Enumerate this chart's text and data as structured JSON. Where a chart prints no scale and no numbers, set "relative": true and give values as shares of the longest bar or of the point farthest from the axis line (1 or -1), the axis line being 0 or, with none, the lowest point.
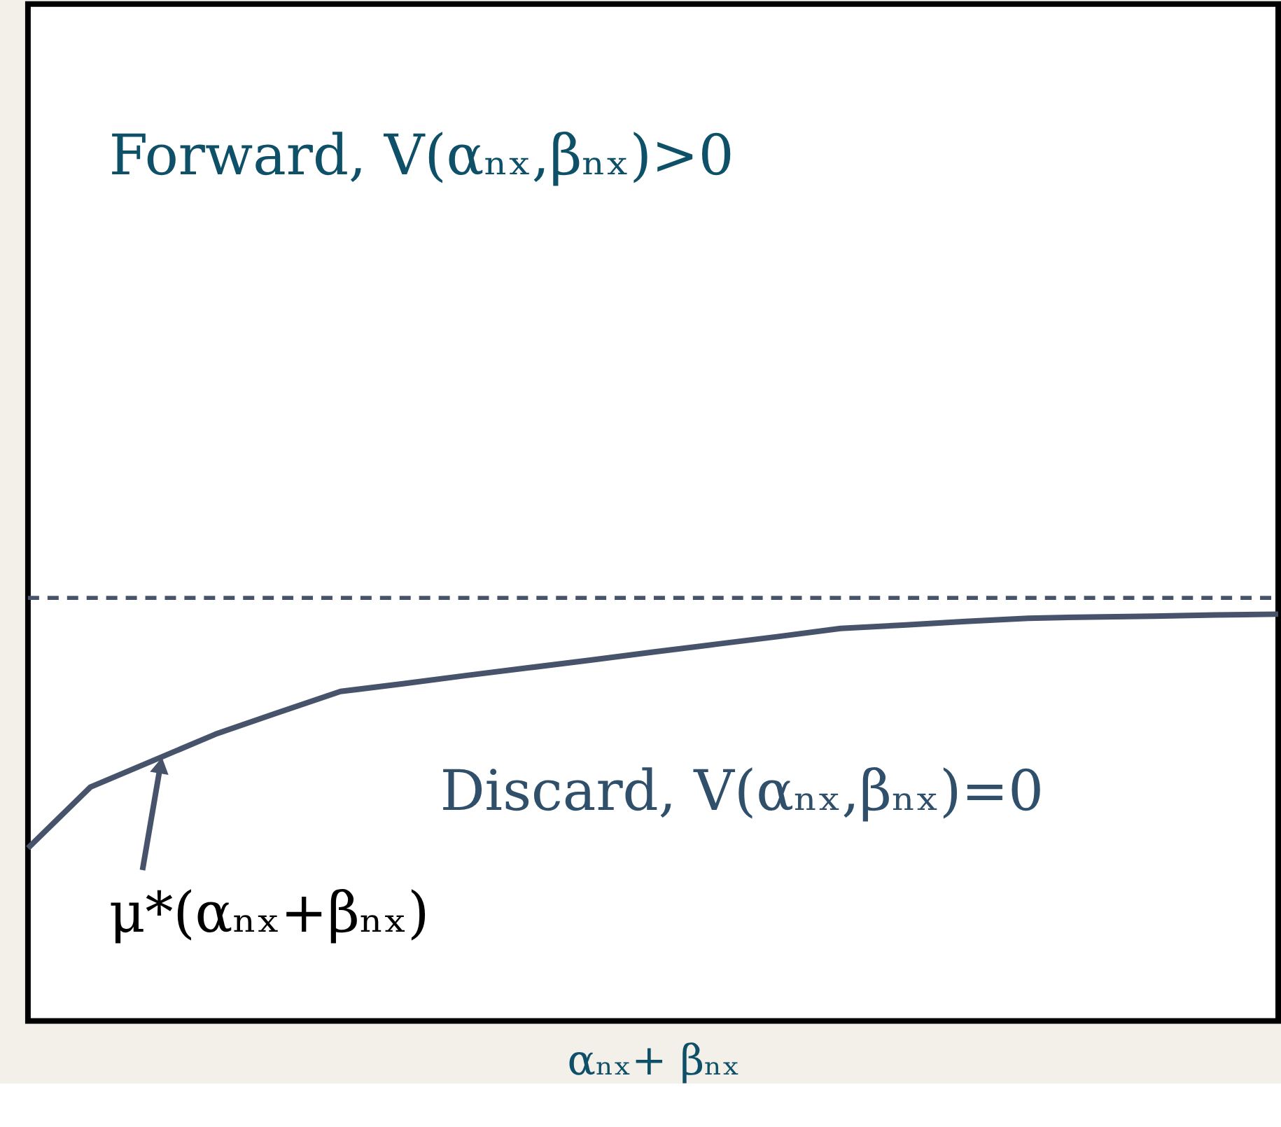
{
  "chart_data": {
    "type": "line",
    "relative": true,
    "xlabel": "αₙₓ+ βₙₓ",
    "categories": [
      null,
      null,
      null,
      null,
      null,
      null,
      null,
      null,
      null,
      null,
      null,
      null,
      null,
      null,
      null,
      null,
      null,
      null,
      null,
      null,
      null
    ],
    "tick_labels": false,
    "grid": false,
    "line_style": "solid",
    "marker": "none",
    "series": [
      {
        "color": "#47536a",
        "values": [
          0.425,
          0.575,
          0.64,
          0.705,
          0.758,
          0.81,
          0.829,
          0.849,
          0.868,
          0.887,
          0.907,
          0.926,
          0.945,
          0.965,
          0.973,
          0.982,
          0.99,
          0.993,
          0.995,
          0.998,
          1
        ]
      }
    ],
    "ref_lines": [
      {
        "axis": "y",
        "value": 1.04,
        "color": "#47536a",
        "line_style": "dashed"
      }
    ],
    "annotations": [
      "Forward, V(αₙₓ,βₙₓ)>0",
      "Discard, V(αₙₓ,βₙₓ)=0",
      "μ*(αₙₓ+βₙₓ)"
    ]
  }
}
